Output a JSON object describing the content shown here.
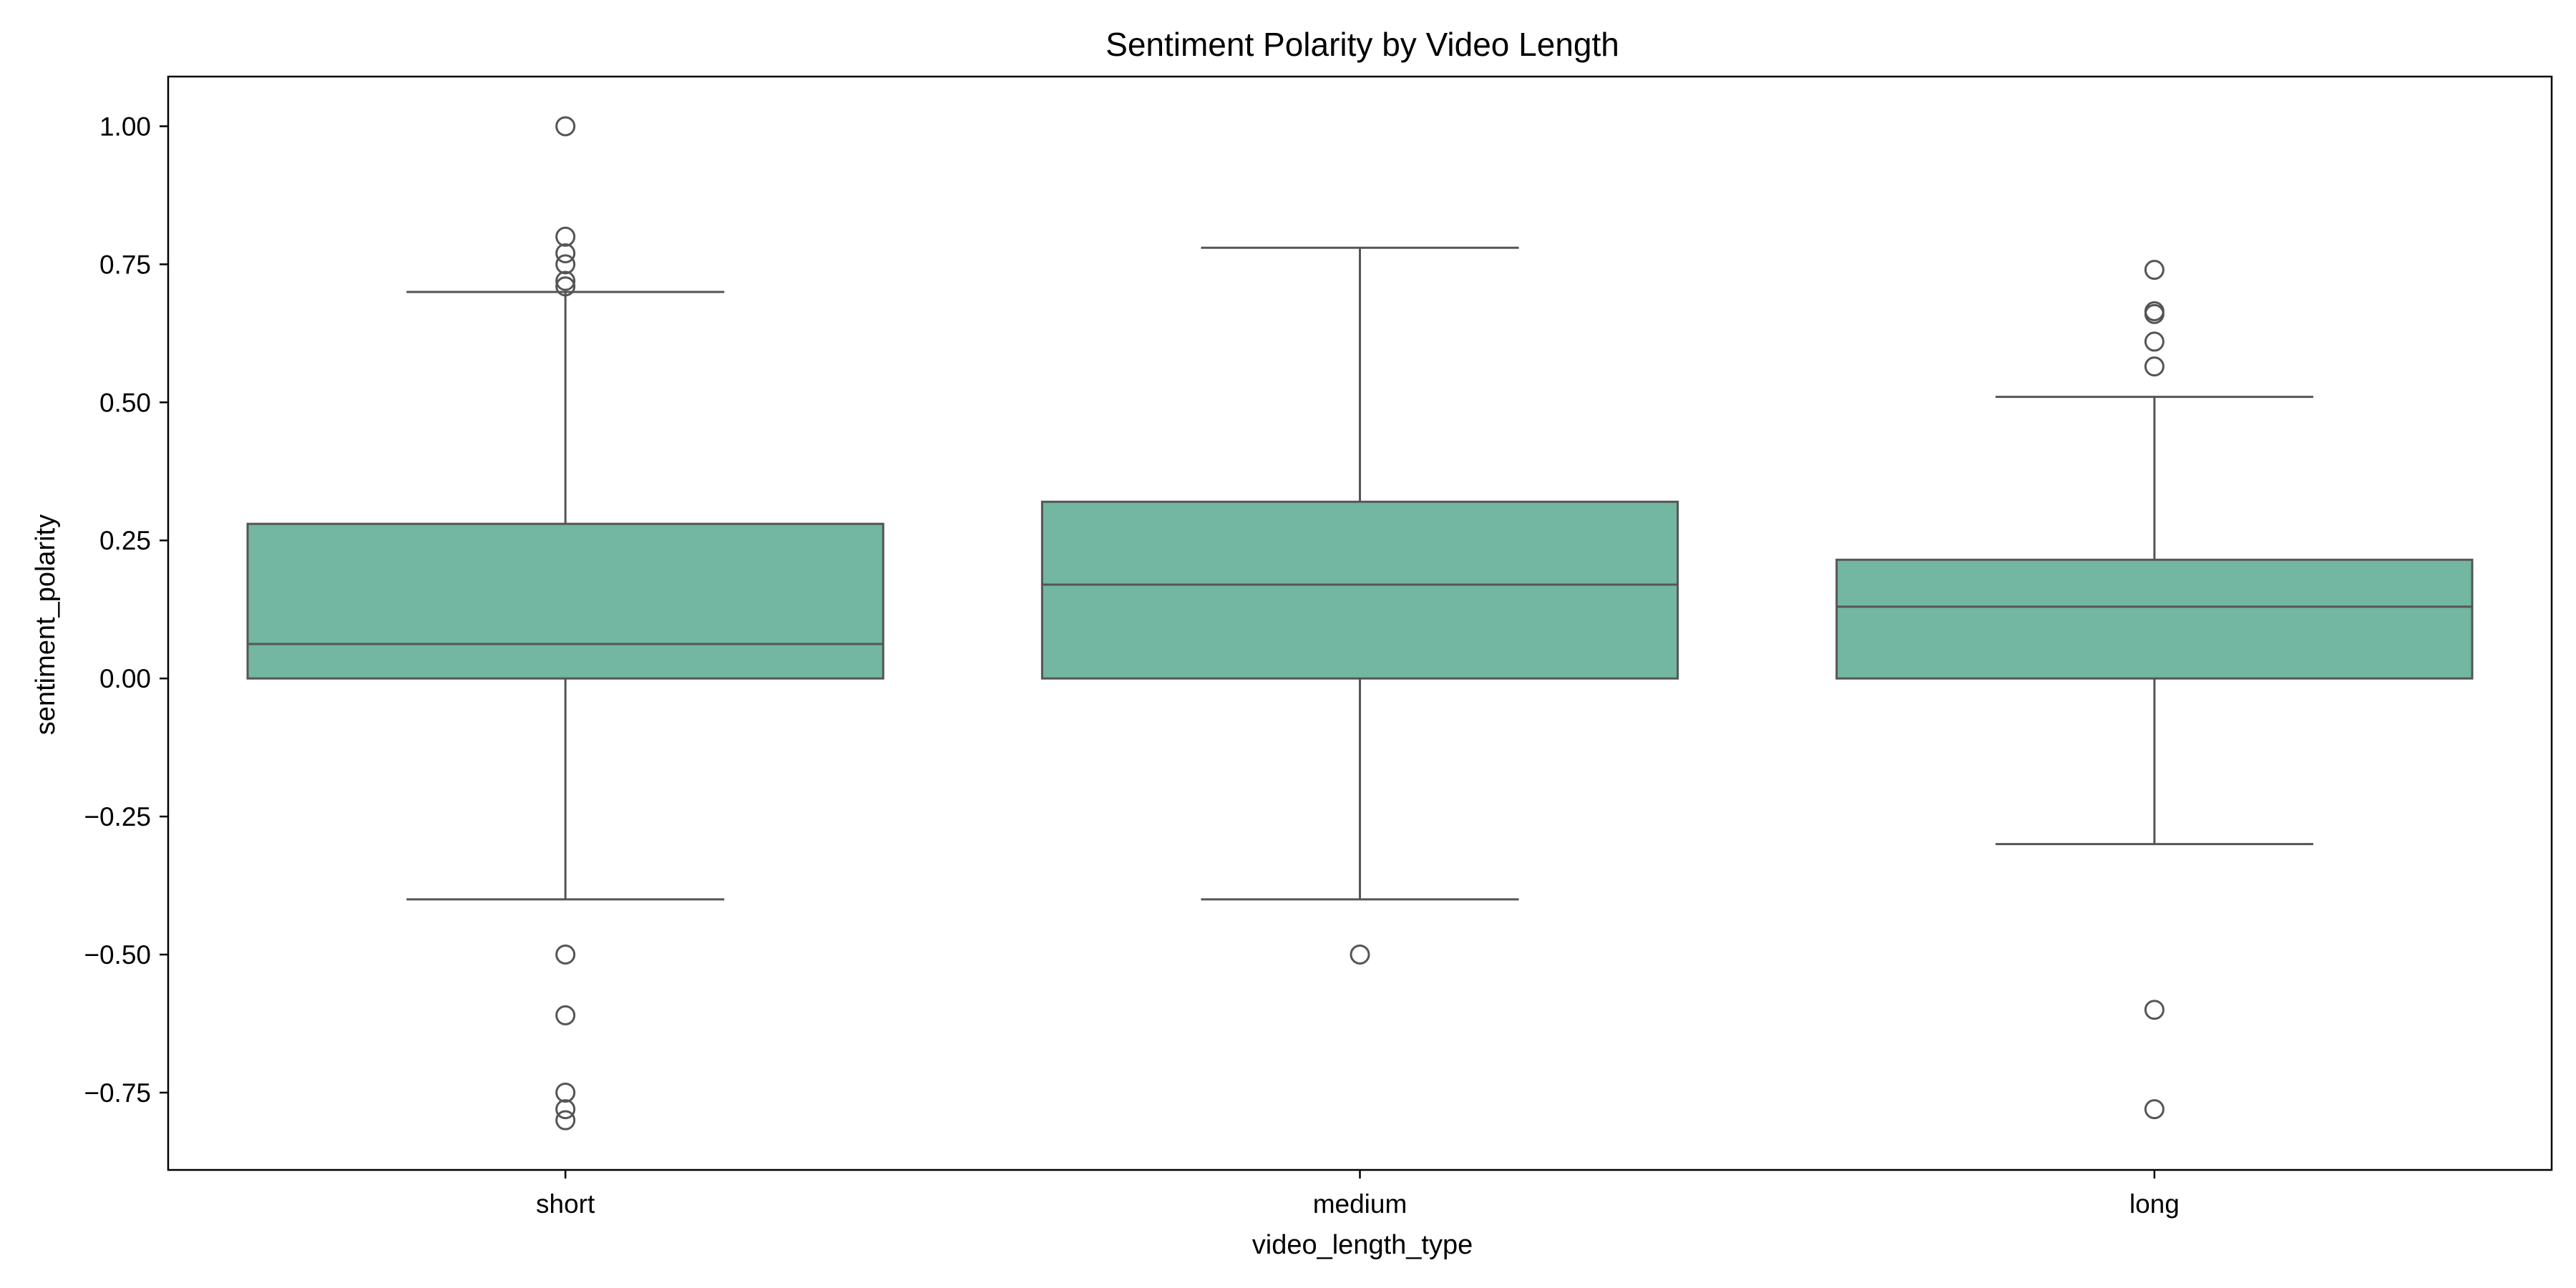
{
  "chart_data": {
    "type": "box",
    "title": "Sentiment Polarity by Video Length",
    "xlabel": "video_length_type",
    "ylabel": "sentiment_polarity",
    "categories": [
      "short",
      "medium",
      "long"
    ],
    "ylim": [
      -0.89,
      1.09
    ],
    "yticks": [
      -0.75,
      -0.5,
      -0.25,
      0.0,
      0.25,
      0.5,
      0.75,
      1.0
    ],
    "ytick_labels": [
      "−0.75",
      "−0.50",
      "−0.25",
      "0.00",
      "0.25",
      "0.50",
      "0.75",
      "1.00"
    ],
    "grid": false,
    "legend": "none",
    "box_color": "#73b6a1",
    "line_color": "#555555",
    "boxes": [
      {
        "category": "short",
        "whisker_low": -0.4,
        "q1": 0.0,
        "median": 0.0625,
        "q3": 0.28,
        "whisker_high": 0.7,
        "outliers": [
          1.0,
          0.8,
          0.77,
          0.75,
          0.72,
          0.71,
          -0.5,
          -0.61,
          -0.75,
          -0.78,
          -0.8
        ]
      },
      {
        "category": "medium",
        "whisker_low": -0.4,
        "q1": 0.0,
        "median": 0.17,
        "q3": 0.32,
        "whisker_high": 0.78,
        "outliers": [
          -0.5
        ]
      },
      {
        "category": "long",
        "whisker_low": -0.3,
        "q1": 0.0,
        "median": 0.13,
        "q3": 0.215,
        "whisker_high": 0.51,
        "outliers": [
          0.74,
          0.665,
          0.66,
          0.61,
          0.565,
          -0.6,
          -0.78
        ]
      }
    ]
  }
}
